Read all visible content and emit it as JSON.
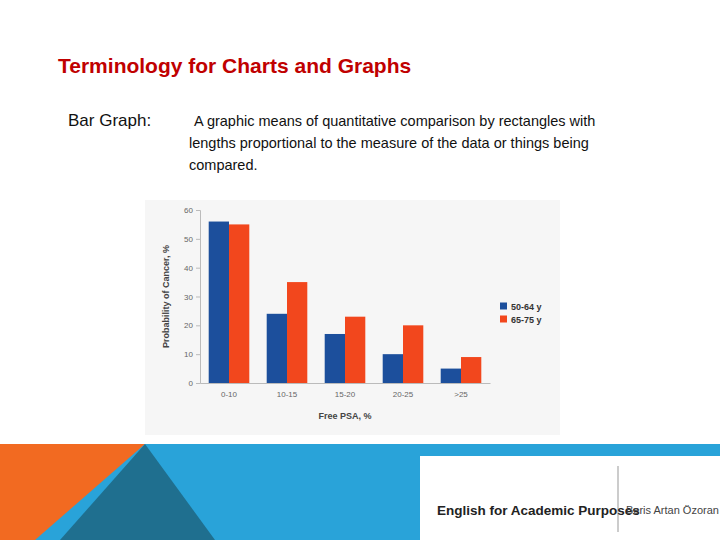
{
  "slide": {
    "title": "Terminology for Charts and Graphs",
    "term": "Bar Graph:",
    "definition": [
      "A graphic means of quantitative comparison by rectangles with",
      "lengths proportional to the measure of the data or things being",
      "compared."
    ],
    "footer": {
      "course": "English for Academic Purposes",
      "author": "Beris Artan Özoran"
    }
  },
  "chart_data": {
    "type": "bar",
    "x_label": "Free PSA, %",
    "y_label": "Probability of Cancer, %",
    "categories": [
      "0-10",
      "10-15",
      "15-20",
      "20-25",
      ">25"
    ],
    "series": [
      {
        "name": "50-64 y",
        "color": "#1c4f9c",
        "values": [
          56,
          24,
          17,
          10,
          5
        ]
      },
      {
        "name": "65-75 y",
        "color": "#f2471d",
        "values": [
          55,
          35,
          23,
          20,
          9
        ]
      }
    ],
    "ylim": [
      0,
      60
    ],
    "yticks": [
      0,
      10,
      20,
      30,
      40,
      50,
      60
    ],
    "legend": "right"
  }
}
